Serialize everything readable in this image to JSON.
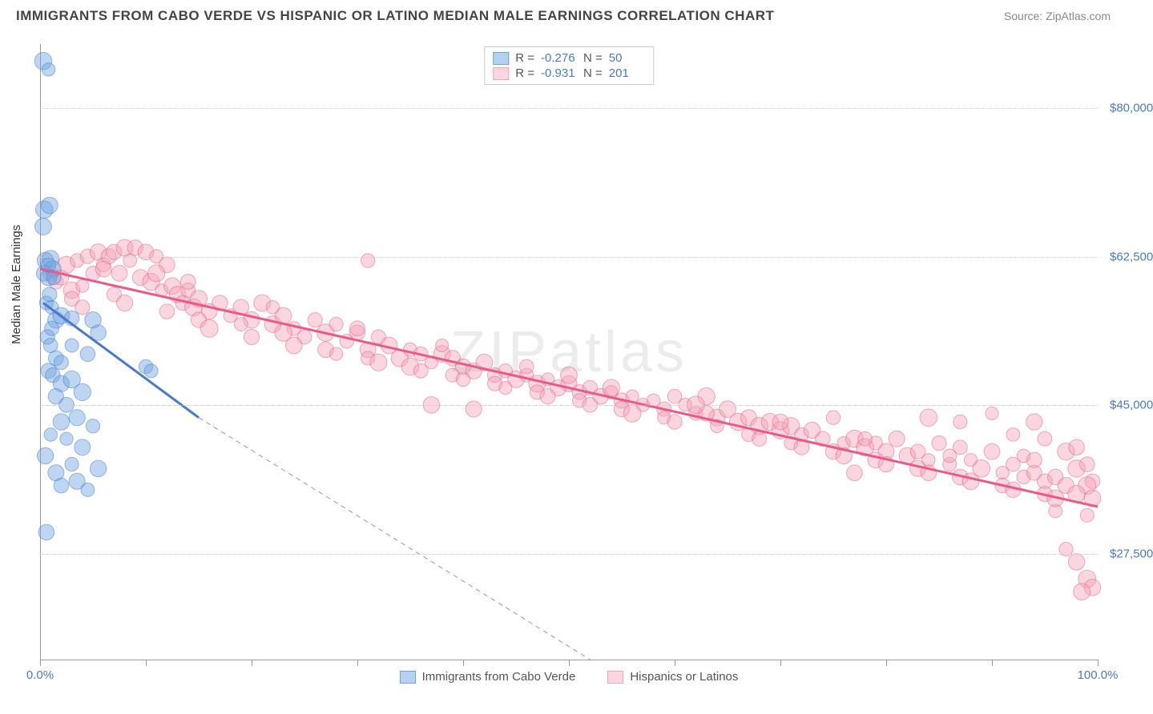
{
  "title": "IMMIGRANTS FROM CABO VERDE VS HISPANIC OR LATINO MEDIAN MALE EARNINGS CORRELATION CHART",
  "source_label": "Source: ",
  "source_name": "ZipAtlas.com",
  "y_axis_label": "Median Male Earnings",
  "watermark": "ZIPatlas",
  "chart": {
    "type": "scatter",
    "xlim": [
      0,
      100
    ],
    "ylim": [
      15000,
      87500
    ],
    "x_ticks": [
      0,
      10,
      20,
      30,
      40,
      50,
      60,
      70,
      80,
      90,
      100
    ],
    "x_tick_labels": {
      "0": "0.0%",
      "100": "100.0%"
    },
    "y_ticks": [
      27500,
      45000,
      62500,
      80000
    ],
    "y_tick_labels": [
      "$27,500",
      "$45,000",
      "$62,500",
      "$80,000"
    ],
    "grid_color": "#cccccc",
    "background_color": "#ffffff",
    "marker_radius": 8,
    "marker_opacity": 0.45,
    "series": [
      {
        "name": "Immigrants from Cabo Verde",
        "color": "#6fa3e0",
        "stroke": "#4a7ac7",
        "R": "-0.276",
        "N": "50",
        "trend": {
          "x1": 0.3,
          "y1": 57000,
          "x2": 15,
          "y2": 43500,
          "ext_x": 52,
          "ext_y": 15000
        },
        "points": [
          [
            0.3,
            85500
          ],
          [
            0.8,
            84500
          ],
          [
            0.4,
            68000
          ],
          [
            0.9,
            68500
          ],
          [
            0.3,
            66000
          ],
          [
            0.5,
            62000
          ],
          [
            1.0,
            62200
          ],
          [
            1.2,
            61000
          ],
          [
            0.4,
            60500
          ],
          [
            0.8,
            60000
          ],
          [
            0.6,
            57000
          ],
          [
            1.1,
            56500
          ],
          [
            1.5,
            55000
          ],
          [
            2.0,
            55500
          ],
          [
            3.0,
            55200
          ],
          [
            0.7,
            53000
          ],
          [
            1.0,
            52000
          ],
          [
            1.5,
            50500
          ],
          [
            2.0,
            50000
          ],
          [
            5.0,
            55000
          ],
          [
            5.5,
            53500
          ],
          [
            3.0,
            52000
          ],
          [
            4.5,
            51000
          ],
          [
            0.8,
            49000
          ],
          [
            1.2,
            48500
          ],
          [
            2.0,
            47500
          ],
          [
            3.0,
            48000
          ],
          [
            1.5,
            46000
          ],
          [
            2.5,
            45000
          ],
          [
            4.0,
            46500
          ],
          [
            10.0,
            49500
          ],
          [
            10.5,
            49000
          ],
          [
            2.0,
            43000
          ],
          [
            3.5,
            43500
          ],
          [
            5.0,
            42500
          ],
          [
            1.0,
            41500
          ],
          [
            2.5,
            41000
          ],
          [
            0.5,
            39000
          ],
          [
            4.0,
            40000
          ],
          [
            3.0,
            38000
          ],
          [
            1.5,
            37000
          ],
          [
            5.5,
            37500
          ],
          [
            2.0,
            35500
          ],
          [
            3.5,
            36000
          ],
          [
            4.5,
            35000
          ],
          [
            0.6,
            30000
          ],
          [
            0.8,
            61500
          ],
          [
            1.3,
            60000
          ],
          [
            0.9,
            58000
          ],
          [
            1.1,
            54000
          ]
        ]
      },
      {
        "name": "Hispanics or Latinos",
        "color": "#f5a3b8",
        "stroke": "#e85a8a",
        "R": "-0.931",
        "N": "201",
        "trend": {
          "x1": 0,
          "y1": 61000,
          "x2": 100,
          "ext_x": 100,
          "y2": 33000,
          "ext_y": 33000
        },
        "points": [
          [
            1,
            60500
          ],
          [
            1.5,
            59500
          ],
          [
            2,
            60000
          ],
          [
            2.5,
            61500
          ],
          [
            3,
            58500
          ],
          [
            3.5,
            62000
          ],
          [
            4,
            59000
          ],
          [
            4.5,
            62500
          ],
          [
            5,
            60500
          ],
          [
            5.5,
            63000
          ],
          [
            6,
            61500
          ],
          [
            6.5,
            62500
          ],
          [
            7,
            63000
          ],
          [
            7.5,
            60500
          ],
          [
            8,
            63500
          ],
          [
            8.5,
            62000
          ],
          [
            9,
            63500
          ],
          [
            9.5,
            60000
          ],
          [
            10,
            63000
          ],
          [
            10.5,
            59500
          ],
          [
            11,
            62500
          ],
          [
            11.5,
            58500
          ],
          [
            12,
            61500
          ],
          [
            12.5,
            59000
          ],
          [
            13,
            58000
          ],
          [
            13.5,
            57000
          ],
          [
            14,
            58500
          ],
          [
            14.5,
            56500
          ],
          [
            15,
            57500
          ],
          [
            16,
            56000
          ],
          [
            17,
            57000
          ],
          [
            18,
            55500
          ],
          [
            19,
            56500
          ],
          [
            20,
            55000
          ],
          [
            21,
            57000
          ],
          [
            22,
            54500
          ],
          [
            23,
            55500
          ],
          [
            24,
            54000
          ],
          [
            25,
            53000
          ],
          [
            26,
            55000
          ],
          [
            27,
            53500
          ],
          [
            28,
            54500
          ],
          [
            29,
            52500
          ],
          [
            30,
            53500
          ],
          [
            31,
            51500
          ],
          [
            32,
            53000
          ],
          [
            33,
            52000
          ],
          [
            34,
            50500
          ],
          [
            35,
            51500
          ],
          [
            36,
            51000
          ],
          [
            37,
            50000
          ],
          [
            38,
            51000
          ],
          [
            31,
            62000
          ],
          [
            39,
            50500
          ],
          [
            40,
            49500
          ],
          [
            41,
            49000
          ],
          [
            42,
            50000
          ],
          [
            43,
            48500
          ],
          [
            44,
            49000
          ],
          [
            45,
            48000
          ],
          [
            46,
            48500
          ],
          [
            47,
            47500
          ],
          [
            48,
            48000
          ],
          [
            49,
            47000
          ],
          [
            37,
            45000
          ],
          [
            50,
            47500
          ],
          [
            51,
            46500
          ],
          [
            52,
            47000
          ],
          [
            53,
            46000
          ],
          [
            54,
            46500
          ],
          [
            41,
            44500
          ],
          [
            55,
            45500
          ],
          [
            56,
            46000
          ],
          [
            57,
            45000
          ],
          [
            58,
            45500
          ],
          [
            59,
            44500
          ],
          [
            60,
            46000
          ],
          [
            50,
            48500
          ],
          [
            61,
            45000
          ],
          [
            62,
            44000
          ],
          [
            63,
            46000
          ],
          [
            64,
            43500
          ],
          [
            65,
            44500
          ],
          [
            66,
            43000
          ],
          [
            67,
            43500
          ],
          [
            68,
            42500
          ],
          [
            69,
            43000
          ],
          [
            70,
            42000
          ],
          [
            71,
            42500
          ],
          [
            72,
            41500
          ],
          [
            73,
            42000
          ],
          [
            74,
            41000
          ],
          [
            75,
            43500
          ],
          [
            76,
            40500
          ],
          [
            77,
            41000
          ],
          [
            78,
            40000
          ],
          [
            79,
            40500
          ],
          [
            80,
            39500
          ],
          [
            81,
            41000
          ],
          [
            82,
            39000
          ],
          [
            83,
            39500
          ],
          [
            84,
            38500
          ],
          [
            85,
            40500
          ],
          [
            86,
            38000
          ],
          [
            87,
            40000
          ],
          [
            77,
            37000
          ],
          [
            88,
            38500
          ],
          [
            89,
            37500
          ],
          [
            84,
            43500
          ],
          [
            90,
            39500
          ],
          [
            87,
            43000
          ],
          [
            91,
            37000
          ],
          [
            92,
            38000
          ],
          [
            90,
            44000
          ],
          [
            93,
            36500
          ],
          [
            94,
            37000
          ],
          [
            92,
            41500
          ],
          [
            95,
            36000
          ],
          [
            93,
            39000
          ],
          [
            96,
            36500
          ],
          [
            95,
            41000
          ],
          [
            94,
            43000
          ],
          [
            97,
            35500
          ],
          [
            98,
            37500
          ],
          [
            96,
            32500
          ],
          [
            99,
            32000
          ],
          [
            97,
            28000
          ],
          [
            98,
            26500
          ],
          [
            99,
            24500
          ],
          [
            99.5,
            23500
          ],
          [
            98.5,
            23000
          ],
          [
            99.5,
            36000
          ],
          [
            99,
            35500
          ],
          [
            98,
            34500
          ],
          [
            99.5,
            34000
          ],
          [
            3,
            57500
          ],
          [
            7,
            58000
          ],
          [
            11,
            60500
          ],
          [
            15,
            55000
          ],
          [
            19,
            54500
          ],
          [
            23,
            53500
          ],
          [
            27,
            51500
          ],
          [
            31,
            50500
          ],
          [
            35,
            49500
          ],
          [
            39,
            48500
          ],
          [
            43,
            47500
          ],
          [
            47,
            46500
          ],
          [
            51,
            45500
          ],
          [
            55,
            44500
          ],
          [
            59,
            43500
          ],
          [
            63,
            44000
          ],
          [
            67,
            41500
          ],
          [
            71,
            40500
          ],
          [
            75,
            39500
          ],
          [
            79,
            38500
          ],
          [
            83,
            37500
          ],
          [
            87,
            36500
          ],
          [
            91,
            35500
          ],
          [
            95,
            34500
          ],
          [
            4,
            56500
          ],
          [
            8,
            57000
          ],
          [
            12,
            56000
          ],
          [
            16,
            54000
          ],
          [
            20,
            53000
          ],
          [
            24,
            52000
          ],
          [
            28,
            51000
          ],
          [
            32,
            50000
          ],
          [
            36,
            49000
          ],
          [
            40,
            48000
          ],
          [
            44,
            47000
          ],
          [
            48,
            46000
          ],
          [
            52,
            45000
          ],
          [
            56,
            44000
          ],
          [
            60,
            43000
          ],
          [
            64,
            42500
          ],
          [
            68,
            41000
          ],
          [
            72,
            40000
          ],
          [
            76,
            39000
          ],
          [
            80,
            38000
          ],
          [
            84,
            37000
          ],
          [
            88,
            36000
          ],
          [
            92,
            35000
          ],
          [
            96,
            34000
          ],
          [
            6,
            61000
          ],
          [
            14,
            59500
          ],
          [
            22,
            56500
          ],
          [
            30,
            54000
          ],
          [
            38,
            52000
          ],
          [
            46,
            49500
          ],
          [
            54,
            47000
          ],
          [
            62,
            45000
          ],
          [
            70,
            43000
          ],
          [
            78,
            41000
          ],
          [
            86,
            39000
          ],
          [
            94,
            38500
          ],
          [
            97,
            39500
          ],
          [
            99,
            38000
          ],
          [
            98,
            40000
          ]
        ]
      }
    ]
  },
  "legend": {
    "r_label": "R =",
    "n_label": "N ="
  }
}
